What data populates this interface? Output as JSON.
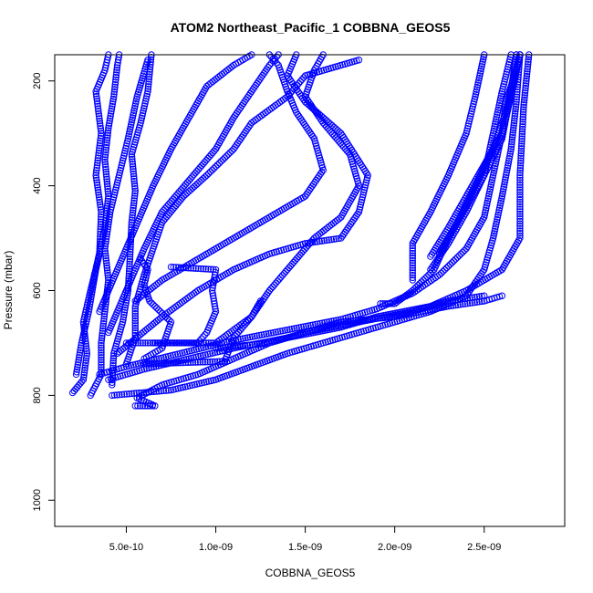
{
  "chart_data": {
    "type": "scatter",
    "title": "ATOM2 Northeast_Pacific_1 COBBNA_GEOS5",
    "xlabel": "COBBNA_GEOS5",
    "ylabel": "Pressure (mbar)",
    "xlim": [
      1e-10,
      2.95e-09
    ],
    "ylim": [
      1050,
      150
    ],
    "y_reversed": true,
    "grid": false,
    "marker": "open-circle",
    "point_color": "#0000ff",
    "x_ticks": [
      {
        "value": 5e-10,
        "label": "5.0e-10"
      },
      {
        "value": 1e-09,
        "label": "1.0e-09"
      },
      {
        "value": 1.5e-09,
        "label": "1.5e-09"
      },
      {
        "value": 2e-09,
        "label": "2.0e-09"
      },
      {
        "value": 2.5e-09,
        "label": "2.5e-09"
      }
    ],
    "y_ticks": [
      {
        "value": 200,
        "label": "200"
      },
      {
        "value": 400,
        "label": "400"
      },
      {
        "value": 600,
        "label": "600"
      },
      {
        "value": 800,
        "label": "800"
      },
      {
        "value": 1000,
        "label": "1000"
      }
    ],
    "series": [
      {
        "points": [
          [
            2e-10,
            795
          ],
          [
            2.6e-10,
            770
          ],
          [
            2.8e-10,
            720
          ],
          [
            2.6e-10,
            660
          ],
          [
            3e-10,
            600
          ],
          [
            3.5e-10,
            530
          ],
          [
            3.6e-10,
            450
          ],
          [
            3.3e-10,
            380
          ],
          [
            3.6e-10,
            300
          ],
          [
            3.3e-10,
            220
          ],
          [
            3.8e-10,
            180
          ],
          [
            4e-10,
            150
          ]
        ]
      },
      {
        "points": [
          [
            2.2e-10,
            760
          ],
          [
            2.5e-10,
            700
          ],
          [
            2.9e-10,
            640
          ],
          [
            3.3e-10,
            560
          ],
          [
            3.8e-10,
            480
          ],
          [
            4e-10,
            420
          ],
          [
            3.8e-10,
            350
          ],
          [
            4e-10,
            290
          ],
          [
            4.3e-10,
            230
          ],
          [
            4.5e-10,
            170
          ],
          [
            4.6e-10,
            150
          ]
        ]
      },
      {
        "points": [
          [
            3e-10,
            800
          ],
          [
            3.6e-10,
            760
          ],
          [
            3.6e-10,
            700
          ],
          [
            3.8e-10,
            640
          ],
          [
            4e-10,
            580
          ],
          [
            3.8e-10,
            520
          ],
          [
            4.1e-10,
            450
          ],
          [
            4.6e-10,
            380
          ],
          [
            5.1e-10,
            310
          ],
          [
            5.6e-10,
            230
          ],
          [
            6.2e-10,
            160
          ]
        ]
      },
      {
        "points": [
          [
            4.2e-10,
            780
          ],
          [
            4.3e-10,
            720
          ],
          [
            4.8e-10,
            660
          ],
          [
            5.1e-10,
            600
          ],
          [
            5.2e-10,
            540
          ],
          [
            5.3e-10,
            470
          ],
          [
            5.5e-10,
            410
          ],
          [
            5.3e-10,
            340
          ],
          [
            5.8e-10,
            280
          ],
          [
            6.2e-10,
            220
          ],
          [
            6.4e-10,
            150
          ]
        ]
      },
      {
        "points": [
          [
            5e-10,
            740
          ],
          [
            5.5e-10,
            690
          ],
          [
            5.5e-10,
            630
          ],
          [
            6e-10,
            570
          ],
          [
            6.5e-10,
            520
          ],
          [
            7e-10,
            470
          ],
          [
            8.2e-10,
            420
          ],
          [
            9.5e-10,
            380
          ],
          [
            1.1e-09,
            330
          ],
          [
            1.2e-09,
            280
          ],
          [
            1.4e-09,
            230
          ],
          [
            1.5e-09,
            190
          ],
          [
            1.8e-09,
            160
          ]
        ]
      },
      {
        "points": [
          [
            5.5e-10,
            820
          ],
          [
            6.6e-10,
            820
          ],
          [
            5.6e-10,
            805
          ],
          [
            7e-10,
            780
          ],
          [
            9e-10,
            760
          ],
          [
            1.1e-09,
            730
          ],
          [
            1.3e-09,
            700
          ],
          [
            1.5e-09,
            680
          ],
          [
            1.7e-09,
            660
          ],
          [
            2e-09,
            650
          ],
          [
            2.3e-09,
            630
          ],
          [
            2.5e-09,
            620
          ],
          [
            2.6e-09,
            610
          ]
        ]
      },
      {
        "points": [
          [
            4e-10,
            770
          ],
          [
            6e-10,
            750
          ],
          [
            8.5e-10,
            730
          ],
          [
            1.1e-09,
            710
          ],
          [
            1.4e-09,
            690
          ],
          [
            1.7e-09,
            670
          ],
          [
            1.9e-09,
            650
          ],
          [
            2.2e-09,
            630
          ],
          [
            2.4e-09,
            600
          ],
          [
            2.6e-09,
            560
          ],
          [
            2.7e-09,
            500
          ],
          [
            2.7e-09,
            380
          ],
          [
            2.72e-09,
            250
          ],
          [
            2.75e-09,
            150
          ]
        ]
      },
      {
        "points": [
          [
            3.5e-10,
            760
          ],
          [
            5e-10,
            745
          ],
          [
            8e-10,
            720
          ],
          [
            1.1e-09,
            695
          ],
          [
            1.4e-09,
            675
          ],
          [
            1.7e-09,
            655
          ],
          [
            1.9e-09,
            635
          ],
          [
            2.1e-09,
            605
          ],
          [
            2.25e-09,
            570
          ],
          [
            2.4e-09,
            520
          ],
          [
            2.5e-09,
            460
          ],
          [
            2.55e-09,
            380
          ],
          [
            2.6e-09,
            300
          ],
          [
            2.65e-09,
            230
          ],
          [
            2.7e-09,
            150
          ]
        ]
      },
      {
        "points": [
          [
            4.2e-10,
            800
          ],
          [
            7.5e-10,
            790
          ],
          [
            1e-09,
            770
          ],
          [
            1.2e-09,
            745
          ],
          [
            1.4e-09,
            720
          ],
          [
            1.6e-09,
            700
          ],
          [
            1.8e-09,
            680
          ],
          [
            2e-09,
            660
          ],
          [
            2.2e-09,
            640
          ],
          [
            2.4e-09,
            610
          ],
          [
            2.5e-09,
            560
          ],
          [
            2.55e-09,
            500
          ],
          [
            2.6e-09,
            420
          ],
          [
            2.65e-09,
            330
          ],
          [
            2.68e-09,
            240
          ],
          [
            2.7e-09,
            150
          ]
        ]
      },
      {
        "points": [
          [
            2.2e-09,
            535
          ],
          [
            2.3e-09,
            480
          ],
          [
            2.4e-09,
            420
          ],
          [
            2.5e-09,
            360
          ],
          [
            2.6e-09,
            300
          ],
          [
            2.62e-09,
            240
          ],
          [
            2.66e-09,
            200
          ],
          [
            2.7e-09,
            150
          ]
        ]
      },
      {
        "points": [
          [
            2.25e-09,
            530
          ],
          [
            2.35e-09,
            470
          ],
          [
            2.45e-09,
            400
          ],
          [
            2.55e-09,
            330
          ],
          [
            2.62e-09,
            260
          ],
          [
            2.66e-09,
            200
          ],
          [
            2.68e-09,
            150
          ]
        ]
      },
      {
        "points": [
          [
            2.2e-09,
            560
          ],
          [
            2.3e-09,
            510
          ],
          [
            2.4e-09,
            450
          ],
          [
            2.5e-09,
            380
          ],
          [
            2.6e-09,
            310
          ],
          [
            2.64e-09,
            240
          ],
          [
            2.68e-09,
            150
          ]
        ]
      },
      {
        "points": [
          [
            1.92e-09,
            625
          ],
          [
            2e-09,
            625
          ],
          [
            2.1e-09,
            600
          ],
          [
            2.22e-09,
            560
          ],
          [
            2.3e-09,
            500
          ],
          [
            2.4e-09,
            440
          ],
          [
            2.5e-09,
            380
          ],
          [
            2.55e-09,
            300
          ],
          [
            2.6e-09,
            220
          ],
          [
            2.65e-09,
            150
          ]
        ]
      },
      {
        "points": [
          [
            2.1e-09,
            580
          ],
          [
            2.1e-09,
            510
          ],
          [
            2.2e-09,
            450
          ],
          [
            2.3e-09,
            380
          ],
          [
            2.4e-09,
            300
          ],
          [
            2.45e-09,
            230
          ],
          [
            2.5e-09,
            150
          ]
        ]
      },
      {
        "points": [
          [
            6.5e-10,
            700
          ],
          [
            1e-09,
            700
          ],
          [
            1.2e-09,
            650
          ],
          [
            1.3e-09,
            600
          ],
          [
            1.4e-09,
            560
          ],
          [
            1.55e-09,
            500
          ],
          [
            1.7e-09,
            460
          ],
          [
            1.8e-09,
            400
          ],
          [
            1.75e-09,
            340
          ],
          [
            1.6e-09,
            280
          ],
          [
            1.5e-09,
            230
          ],
          [
            1.55e-09,
            180
          ],
          [
            1.6e-09,
            150
          ]
        ]
      },
      {
        "points": [
          [
            1e-09,
            710
          ],
          [
            1.3e-09,
            700
          ],
          [
            1.5e-09,
            680
          ],
          [
            1.8e-09,
            660
          ],
          [
            2.1e-09,
            640
          ],
          [
            2.3e-09,
            620
          ],
          [
            2.5e-09,
            610
          ]
        ]
      },
      {
        "points": [
          [
            6e-10,
            740
          ],
          [
            1.05e-09,
            735
          ],
          [
            1.1e-09,
            690
          ],
          [
            1.2e-09,
            650
          ],
          [
            1.25e-09,
            620
          ]
        ]
      },
      {
        "points": [
          [
            5e-10,
            700
          ],
          [
            9e-10,
            700
          ],
          [
            9.5e-10,
            680
          ],
          [
            1e-09,
            640
          ],
          [
            9.8e-10,
            600
          ],
          [
            1e-09,
            560
          ],
          [
            7.5e-10,
            555
          ]
        ]
      },
      {
        "points": [
          [
            6e-10,
            730
          ],
          [
            7e-10,
            710
          ],
          [
            7.5e-10,
            660
          ],
          [
            6.3e-10,
            620
          ],
          [
            6e-10,
            590
          ],
          [
            6.2e-10,
            560
          ],
          [
            5.8e-10,
            540
          ]
        ]
      },
      {
        "points": [
          [
            4.5e-10,
            720
          ],
          [
            7e-10,
            650
          ],
          [
            9e-10,
            600
          ],
          [
            1.1e-09,
            560
          ],
          [
            1.3e-09,
            530
          ],
          [
            1.5e-09,
            510
          ],
          [
            1.7e-09,
            500
          ],
          [
            1.8e-09,
            450
          ],
          [
            1.85e-09,
            380
          ],
          [
            1.7e-09,
            300
          ],
          [
            1.5e-09,
            240
          ],
          [
            1.4e-09,
            190
          ],
          [
            1.45e-09,
            150
          ]
        ]
      },
      {
        "points": [
          [
            4e-10,
            680
          ],
          [
            5e-10,
            600
          ],
          [
            6e-10,
            520
          ],
          [
            7e-10,
            450
          ],
          [
            8.5e-10,
            390
          ],
          [
            1e-09,
            330
          ],
          [
            1.1e-09,
            270
          ],
          [
            1.2e-09,
            220
          ],
          [
            1.3e-09,
            170
          ],
          [
            1.35e-09,
            150
          ]
        ]
      },
      {
        "points": [
          [
            3.5e-10,
            640
          ],
          [
            4.5e-10,
            560
          ],
          [
            5.5e-10,
            480
          ],
          [
            6.5e-10,
            400
          ],
          [
            7.5e-10,
            330
          ],
          [
            8.5e-10,
            270
          ],
          [
            9.5e-10,
            210
          ],
          [
            1.1e-09,
            170
          ],
          [
            1.2e-09,
            150
          ]
        ]
      },
      {
        "points": [
          [
            5.5e-10,
            620
          ],
          [
            7e-10,
            580
          ],
          [
            9e-10,
            540
          ],
          [
            1.1e-09,
            500
          ],
          [
            1.3e-09,
            460
          ],
          [
            1.5e-09,
            420
          ],
          [
            1.6e-09,
            370
          ],
          [
            1.55e-09,
            310
          ],
          [
            1.45e-09,
            260
          ],
          [
            1.4e-09,
            220
          ],
          [
            1.35e-09,
            170
          ],
          [
            1.3e-09,
            150
          ]
        ]
      }
    ]
  }
}
